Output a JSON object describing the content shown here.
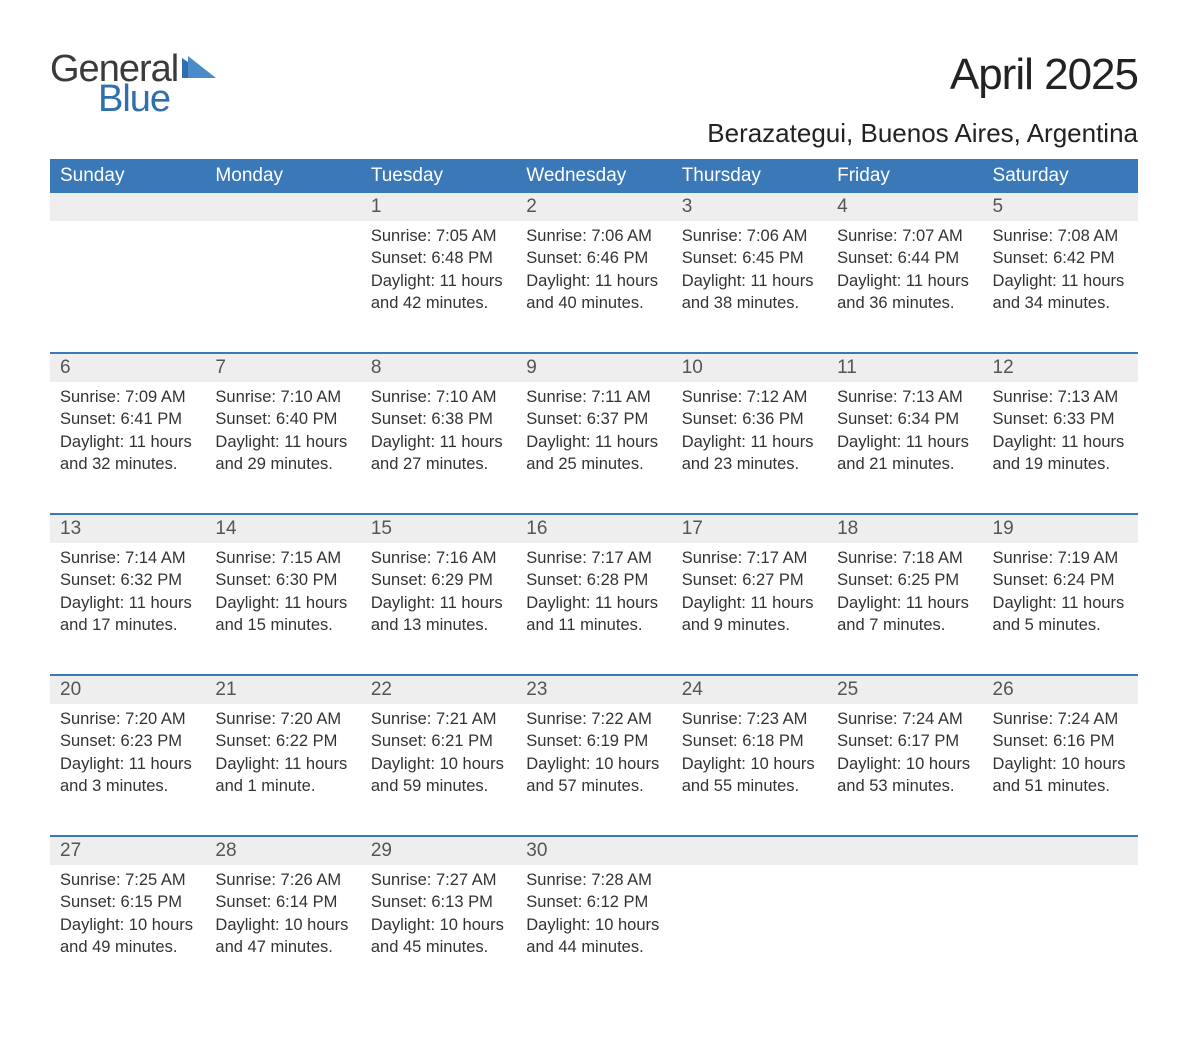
{
  "logo": {
    "general": "General",
    "blue": "Blue",
    "accent_color": "#2f6fb0"
  },
  "title": "April 2025",
  "location": "Berazategui, Buenos Aires, Argentina",
  "header_bg": "#3a78b8",
  "daynum_bg": "#eeeeee",
  "border_color": "#3a78b8",
  "weekdays": [
    "Sunday",
    "Monday",
    "Tuesday",
    "Wednesday",
    "Thursday",
    "Friday",
    "Saturday"
  ],
  "weeks": [
    [
      null,
      null,
      {
        "n": "1",
        "sunrise": "7:05 AM",
        "sunset": "6:48 PM",
        "daylight": "11 hours and 42 minutes."
      },
      {
        "n": "2",
        "sunrise": "7:06 AM",
        "sunset": "6:46 PM",
        "daylight": "11 hours and 40 minutes."
      },
      {
        "n": "3",
        "sunrise": "7:06 AM",
        "sunset": "6:45 PM",
        "daylight": "11 hours and 38 minutes."
      },
      {
        "n": "4",
        "sunrise": "7:07 AM",
        "sunset": "6:44 PM",
        "daylight": "11 hours and 36 minutes."
      },
      {
        "n": "5",
        "sunrise": "7:08 AM",
        "sunset": "6:42 PM",
        "daylight": "11 hours and 34 minutes."
      }
    ],
    [
      {
        "n": "6",
        "sunrise": "7:09 AM",
        "sunset": "6:41 PM",
        "daylight": "11 hours and 32 minutes."
      },
      {
        "n": "7",
        "sunrise": "7:10 AM",
        "sunset": "6:40 PM",
        "daylight": "11 hours and 29 minutes."
      },
      {
        "n": "8",
        "sunrise": "7:10 AM",
        "sunset": "6:38 PM",
        "daylight": "11 hours and 27 minutes."
      },
      {
        "n": "9",
        "sunrise": "7:11 AM",
        "sunset": "6:37 PM",
        "daylight": "11 hours and 25 minutes."
      },
      {
        "n": "10",
        "sunrise": "7:12 AM",
        "sunset": "6:36 PM",
        "daylight": "11 hours and 23 minutes."
      },
      {
        "n": "11",
        "sunrise": "7:13 AM",
        "sunset": "6:34 PM",
        "daylight": "11 hours and 21 minutes."
      },
      {
        "n": "12",
        "sunrise": "7:13 AM",
        "sunset": "6:33 PM",
        "daylight": "11 hours and 19 minutes."
      }
    ],
    [
      {
        "n": "13",
        "sunrise": "7:14 AM",
        "sunset": "6:32 PM",
        "daylight": "11 hours and 17 minutes."
      },
      {
        "n": "14",
        "sunrise": "7:15 AM",
        "sunset": "6:30 PM",
        "daylight": "11 hours and 15 minutes."
      },
      {
        "n": "15",
        "sunrise": "7:16 AM",
        "sunset": "6:29 PM",
        "daylight": "11 hours and 13 minutes."
      },
      {
        "n": "16",
        "sunrise": "7:17 AM",
        "sunset": "6:28 PM",
        "daylight": "11 hours and 11 minutes."
      },
      {
        "n": "17",
        "sunrise": "7:17 AM",
        "sunset": "6:27 PM",
        "daylight": "11 hours and 9 minutes."
      },
      {
        "n": "18",
        "sunrise": "7:18 AM",
        "sunset": "6:25 PM",
        "daylight": "11 hours and 7 minutes."
      },
      {
        "n": "19",
        "sunrise": "7:19 AM",
        "sunset": "6:24 PM",
        "daylight": "11 hours and 5 minutes."
      }
    ],
    [
      {
        "n": "20",
        "sunrise": "7:20 AM",
        "sunset": "6:23 PM",
        "daylight": "11 hours and 3 minutes."
      },
      {
        "n": "21",
        "sunrise": "7:20 AM",
        "sunset": "6:22 PM",
        "daylight": "11 hours and 1 minute."
      },
      {
        "n": "22",
        "sunrise": "7:21 AM",
        "sunset": "6:21 PM",
        "daylight": "10 hours and 59 minutes."
      },
      {
        "n": "23",
        "sunrise": "7:22 AM",
        "sunset": "6:19 PM",
        "daylight": "10 hours and 57 minutes."
      },
      {
        "n": "24",
        "sunrise": "7:23 AM",
        "sunset": "6:18 PM",
        "daylight": "10 hours and 55 minutes."
      },
      {
        "n": "25",
        "sunrise": "7:24 AM",
        "sunset": "6:17 PM",
        "daylight": "10 hours and 53 minutes."
      },
      {
        "n": "26",
        "sunrise": "7:24 AM",
        "sunset": "6:16 PM",
        "daylight": "10 hours and 51 minutes."
      }
    ],
    [
      {
        "n": "27",
        "sunrise": "7:25 AM",
        "sunset": "6:15 PM",
        "daylight": "10 hours and 49 minutes."
      },
      {
        "n": "28",
        "sunrise": "7:26 AM",
        "sunset": "6:14 PM",
        "daylight": "10 hours and 47 minutes."
      },
      {
        "n": "29",
        "sunrise": "7:27 AM",
        "sunset": "6:13 PM",
        "daylight": "10 hours and 45 minutes."
      },
      {
        "n": "30",
        "sunrise": "7:28 AM",
        "sunset": "6:12 PM",
        "daylight": "10 hours and 44 minutes."
      },
      null,
      null,
      null
    ]
  ],
  "labels": {
    "sunrise": "Sunrise: ",
    "sunset": "Sunset: ",
    "daylight": "Daylight: "
  }
}
